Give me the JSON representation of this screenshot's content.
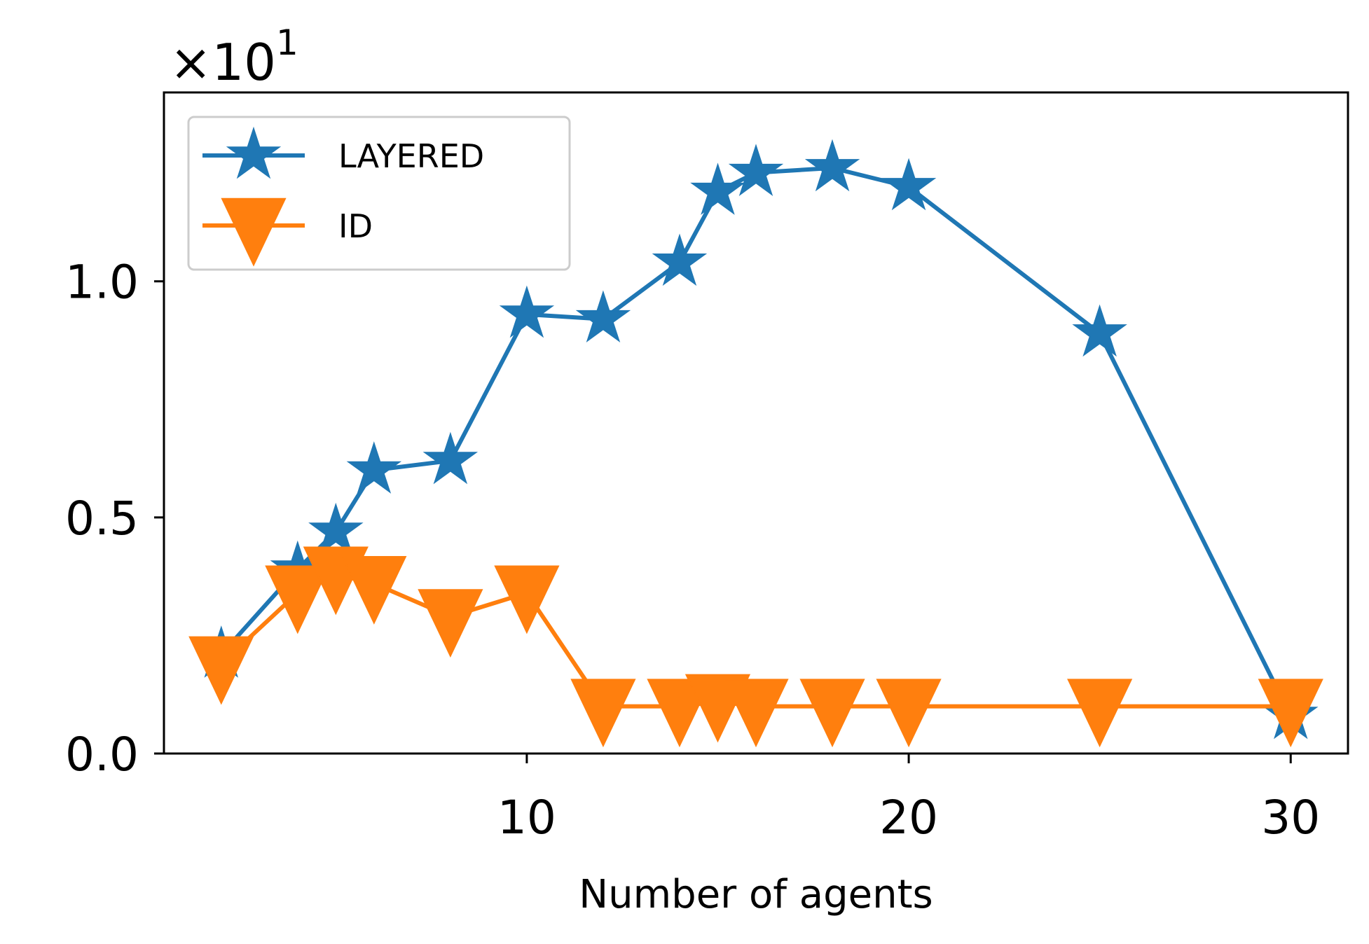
{
  "chart_data": {
    "type": "line",
    "xlabel": "Number of agents",
    "ylabel": "",
    "y_multiplier": {
      "base": "×10",
      "exponent": "1"
    },
    "xlim": [
      0.5,
      31.5
    ],
    "ylim": [
      0,
      1.4
    ],
    "x_ticks": [
      10,
      20,
      30
    ],
    "x_tick_labels": [
      "10",
      "20",
      "30"
    ],
    "y_ticks": [
      0.0,
      0.5,
      1.0
    ],
    "y_tick_labels": [
      "0.0",
      "0.5",
      "1.0"
    ],
    "grid": false,
    "legend_position": "upper left",
    "series": [
      {
        "name": "LAYERED",
        "color": "#1f77b4",
        "marker": "star",
        "x": [
          2,
          4,
          5,
          6,
          8,
          10,
          12,
          14,
          15,
          16,
          18,
          20,
          25,
          30
        ],
        "y": [
          0.21,
          0.39,
          0.47,
          0.6,
          0.62,
          0.93,
          0.92,
          1.04,
          1.19,
          1.23,
          1.24,
          1.2,
          0.89,
          0.08
        ]
      },
      {
        "name": "ID",
        "color": "#ff7f0e",
        "marker": "triangle_down",
        "x": [
          2,
          4,
          5,
          6,
          8,
          10,
          12,
          14,
          15,
          16,
          18,
          20,
          25,
          30
        ],
        "y": [
          0.19,
          0.34,
          0.38,
          0.36,
          0.29,
          0.34,
          0.1,
          0.1,
          0.11,
          0.1,
          0.1,
          0.1,
          0.1,
          0.1
        ]
      }
    ]
  }
}
